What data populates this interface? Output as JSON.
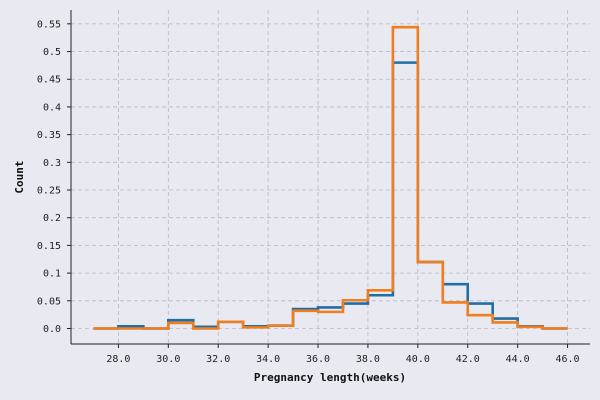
{
  "chart_data": {
    "type": "line",
    "drawstyle": "steps-post",
    "title": "",
    "xlabel": "Pregnancy length(weeks)",
    "ylabel": "Count",
    "xlim": [
      26.1,
      46.9
    ],
    "ylim": [
      -0.028,
      0.575
    ],
    "grid": true,
    "xticks": [
      28,
      30,
      32,
      34,
      36,
      38,
      40,
      42,
      44,
      46
    ],
    "xtick_labels": [
      "28.0",
      "30.0",
      "32.0",
      "34.0",
      "36.0",
      "38.0",
      "40.0",
      "42.0",
      "44.0",
      "46.0"
    ],
    "yticks": [
      0.0,
      0.05,
      0.1,
      0.15,
      0.2,
      0.25,
      0.3,
      0.35,
      0.4,
      0.45,
      0.5,
      0.55
    ],
    "ytick_labels": [
      "0.0",
      "0.05",
      "0.1",
      "0.15",
      "0.2",
      "0.25",
      "0.3",
      "0.35",
      "0.4",
      "0.45",
      "0.5",
      "0.55"
    ],
    "x": [
      27,
      28,
      29,
      30,
      31,
      32,
      33,
      34,
      35,
      36,
      37,
      38,
      39,
      40,
      41,
      42,
      43,
      44,
      45,
      46
    ],
    "series": [
      {
        "color": "#1f6fa6",
        "values": [
          0.0,
          0.004,
          0.0,
          0.015,
          0.003,
          0.012,
          0.004,
          0.005,
          0.035,
          0.038,
          0.045,
          0.06,
          0.48,
          0.12,
          0.08,
          0.045,
          0.018,
          0.004,
          0.0,
          0.0
        ]
      },
      {
        "color": "#f07e1e",
        "values": [
          0.0,
          0.0,
          0.0,
          0.01,
          0.0,
          0.012,
          0.002,
          0.005,
          0.032,
          0.03,
          0.051,
          0.069,
          0.544,
          0.12,
          0.047,
          0.024,
          0.011,
          0.003,
          0.0,
          0.0
        ]
      }
    ]
  }
}
